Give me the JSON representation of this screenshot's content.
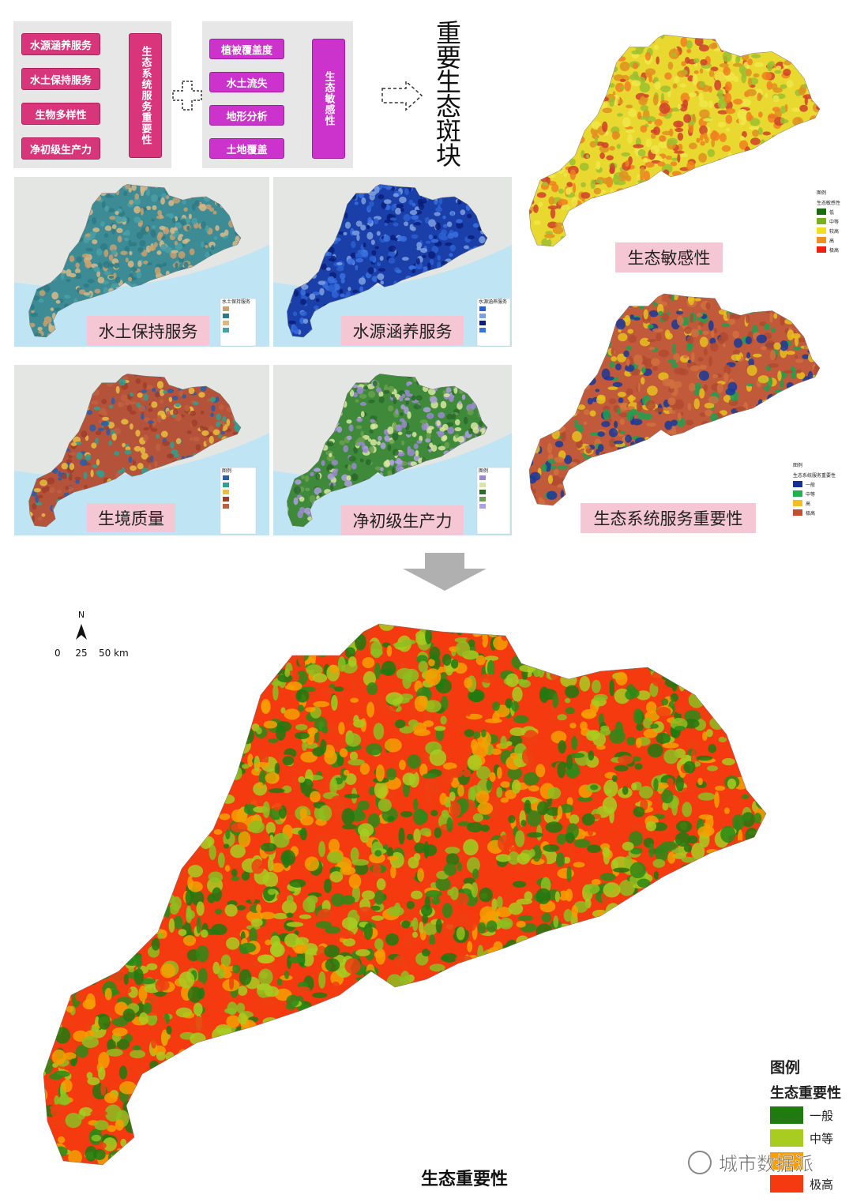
{
  "flow": {
    "group1": {
      "inputs": [
        "水源涵养服务",
        "水土保持服务",
        "生物多样性",
        "净初级生产力"
      ],
      "output": "生态系统服务重要性"
    },
    "group2": {
      "inputs": [
        "植被覆盖度",
        "水土流失",
        "地形分析",
        "土地覆盖"
      ],
      "output": "生态敏感性"
    },
    "result": "重要生态斑块"
  },
  "maps": [
    {
      "label": "水土保持服务",
      "legend": {
        "title": "水土保持服务"
      }
    },
    {
      "label": "水源涵养服务",
      "legend": {
        "title": "水源涵养服务"
      }
    },
    {
      "label": "生境质量",
      "legend": {
        "title": "图例"
      }
    },
    {
      "label": "净初级生产力",
      "legend": {
        "title": "图例"
      }
    },
    {
      "label": "生态敏感性",
      "legend": {
        "title": "图例",
        "subtitle": "生态敏感性",
        "items": [
          {
            "label": "低",
            "color": "#1a6a10"
          },
          {
            "label": "中等",
            "color": "#7ab020"
          },
          {
            "label": "较高",
            "color": "#f0e020"
          },
          {
            "label": "高",
            "color": "#f09020"
          },
          {
            "label": "极高",
            "color": "#f02010"
          }
        ]
      }
    },
    {
      "label": "生态系统服务重要性",
      "legend": {
        "title": "图例",
        "subtitle": "生态系统服务重要性",
        "items": [
          {
            "label": "一般",
            "color": "#1a3090"
          },
          {
            "label": "中等",
            "color": "#20b050"
          },
          {
            "label": "高",
            "color": "#f0c020"
          },
          {
            "label": "极高",
            "color": "#c05030"
          }
        ]
      }
    }
  ],
  "main_map": {
    "north": "N",
    "scale": [
      "0",
      "25",
      "50 km"
    ],
    "legend": {
      "title": "图例",
      "subtitle": "生态重要性",
      "items": [
        {
          "label": "一般",
          "color": "#1f7a10"
        },
        {
          "label": "中等",
          "color": "#a8cc20"
        },
        {
          "color": "#f5a000"
        },
        {
          "label": "极高",
          "color": "#f53a10"
        }
      ]
    },
    "title": "生态重要性"
  },
  "watermark": "城市数据派"
}
